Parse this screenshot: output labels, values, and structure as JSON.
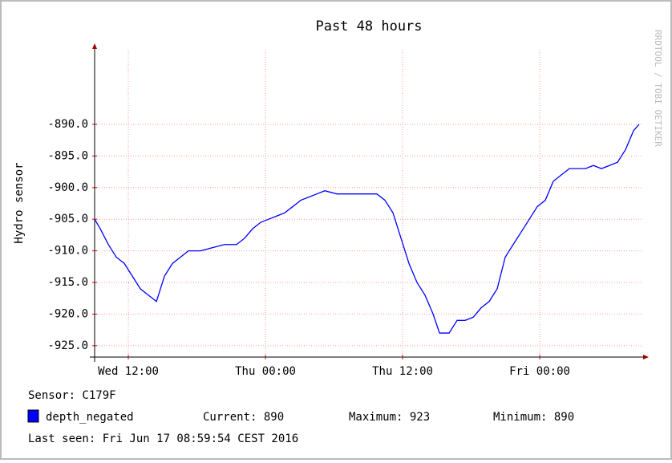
{
  "chart_data": {
    "type": "line",
    "title": "Past 48 hours",
    "ylabel": "Hydro sensor",
    "watermark": "RRDTOOL / TOBI OETIKER",
    "x": [
      -2.95,
      -2.46,
      -1.75,
      -1.05,
      -0.35,
      0.35,
      1.05,
      1.75,
      2.46,
      2.81,
      3.16,
      3.86,
      4.56,
      5.26,
      6.32,
      7.37,
      8.42,
      9.47,
      10.18,
      10.88,
      11.58,
      12.28,
      12.98,
      13.68,
      14.39,
      15.09,
      15.79,
      16.49,
      17.19,
      18.25,
      19.65,
      21.05,
      21.75,
      22.46,
      23.16,
      23.86,
      24.56,
      25.26,
      25.96,
      26.67,
      27.23,
      28.07,
      28.77,
      29.47,
      30.18,
      30.88,
      31.58,
      32.28,
      32.98,
      33.68,
      34.39,
      35.09,
      35.79,
      36.49,
      37.19,
      37.89,
      38.6,
      39.3,
      40.0,
      40.7,
      41.4,
      42.11,
      42.81,
      43.51,
      44.21,
      44.7
    ],
    "series": [
      {
        "name": "depth_negated",
        "color": "#0000ff",
        "values": [
          -905,
          -906.5,
          -909,
          -911,
          -912,
          -914,
          -916,
          -917,
          -918,
          -916,
          -914,
          -912,
          -911,
          -910,
          -910,
          -909.5,
          -909,
          -909,
          -908,
          -906.5,
          -905.5,
          -905,
          -904.5,
          -904,
          -903,
          -902,
          -901.5,
          -901,
          -900.5,
          -901,
          -901,
          -901,
          -901,
          -902,
          -904,
          -908,
          -912,
          -915,
          -917,
          -920,
          -923,
          -923,
          -921,
          -921,
          -920.5,
          -919,
          -918,
          -916,
          -911,
          -909,
          -907,
          -905,
          -903,
          -902,
          -899,
          -898,
          -897,
          -897,
          -897,
          -896.5,
          -897,
          -896.5,
          -896,
          -894,
          -891,
          -890
        ]
      }
    ],
    "xlim": [
      -2.95,
      44.91
    ],
    "xticks": [
      {
        "value": 0,
        "label": "Wed 12:00"
      },
      {
        "value": 12,
        "label": "Thu 00:00"
      },
      {
        "value": 24,
        "label": "Thu 12:00"
      },
      {
        "value": 36,
        "label": "Fri 00:00"
      }
    ],
    "ylim": [
      -926.8,
      -878.2
    ],
    "yticks": [
      {
        "value": -890,
        "label": "-890.0"
      },
      {
        "value": -895,
        "label": "-895.0"
      },
      {
        "value": -900,
        "label": "-900.0"
      },
      {
        "value": -905,
        "label": "-905.0"
      },
      {
        "value": -910,
        "label": "-910.0"
      },
      {
        "value": -915,
        "label": "-915.0"
      },
      {
        "value": -920,
        "label": "-920.0"
      },
      {
        "value": -925,
        "label": "-925.0"
      }
    ],
    "grid": true
  },
  "legend": {
    "sensor": "Sensor: C179F",
    "current": "Current: 890",
    "maximum": "Maximum: 923",
    "minimum": "Minimum: 890",
    "last_seen": "Last seen: Fri Jun 17 08:59:54 CEST 2016"
  }
}
